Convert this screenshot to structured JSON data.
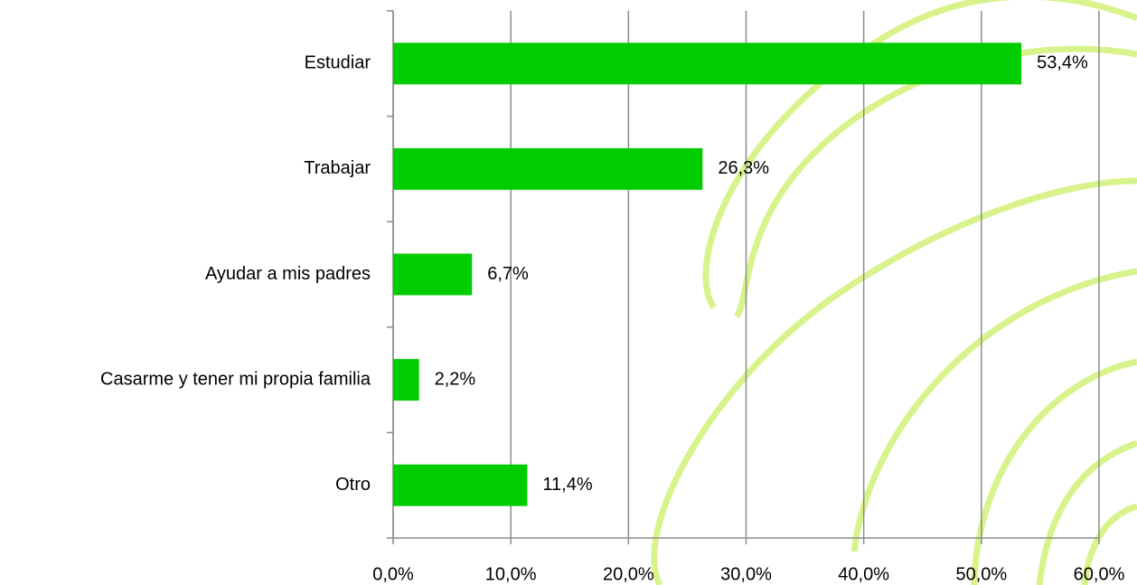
{
  "chart_data": {
    "type": "barh",
    "categories": [
      "Estudiar",
      "Trabajar",
      "Ayudar a mis padres",
      "Casarme y tener mi propia familia",
      "Otro"
    ],
    "values": [
      53.4,
      26.3,
      6.7,
      2.2,
      11.4
    ],
    "value_labels": [
      "53,4%",
      "26,3%",
      "6,7%",
      "2,2%",
      "11,4%"
    ],
    "color": "#00cc00",
    "xlim": [
      0,
      60
    ],
    "xticks": [
      {
        "value": 0,
        "label": "0,0%"
      },
      {
        "value": 10,
        "label": "10,0%"
      },
      {
        "value": 20,
        "label": "20,0%"
      },
      {
        "value": 30,
        "label": "30,0%"
      },
      {
        "value": 40,
        "label": "40,0%"
      },
      {
        "value": 50,
        "label": "50,0%"
      },
      {
        "value": 60,
        "label": "60,0%"
      }
    ],
    "grid": true
  }
}
